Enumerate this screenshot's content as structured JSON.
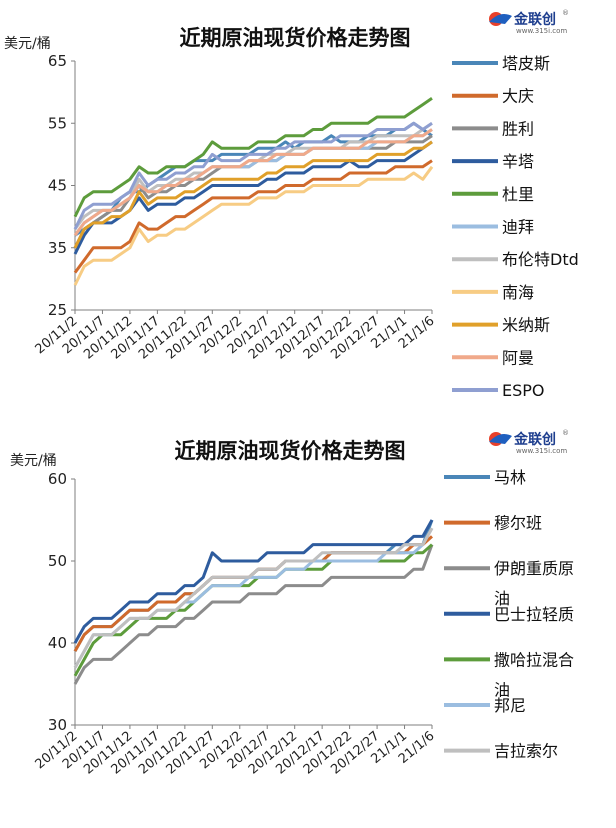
{
  "logo": {
    "brand": "金联创",
    "site": "www.315i.com",
    "mark": "®"
  },
  "chart_data": [
    {
      "type": "line",
      "title": "近期原油现货价格走势图",
      "ylabel": "美元/桶",
      "ylim": [
        25,
        65
      ],
      "yticks": [
        25,
        35,
        45,
        55,
        65
      ],
      "grid": false,
      "legend_position": "right",
      "xtick_labels": [
        "20/11/2",
        "20/11/7",
        "20/11/12",
        "20/11/17",
        "20/11/22",
        "20/11/27",
        "20/12/2",
        "20/12/7",
        "20/12/12",
        "20/12/17",
        "20/12/22",
        "20/12/27",
        "21/1/1",
        "21/1/6"
      ],
      "series": [
        {
          "name": "塔皮斯",
          "color": "#4a86b8",
          "values": [
            37,
            38,
            39,
            40,
            41,
            43,
            44,
            44,
            45,
            46,
            47,
            48,
            48,
            49,
            49,
            49,
            50,
            50,
            50,
            50,
            51,
            51,
            51,
            52,
            51,
            52,
            52,
            52,
            53,
            52,
            52,
            52,
            53,
            53,
            53,
            54,
            54,
            55,
            54,
            53
          ]
        },
        {
          "name": "大庆",
          "color": "#d06a2c",
          "values": [
            31,
            33,
            35,
            35,
            35,
            35,
            36,
            39,
            38,
            38,
            39,
            40,
            40,
            41,
            42,
            43,
            43,
            43,
            43,
            43,
            44,
            44,
            44,
            45,
            45,
            45,
            46,
            46,
            46,
            46,
            47,
            47,
            47,
            47,
            47,
            48,
            48,
            48,
            48,
            49
          ]
        },
        {
          "name": "胜利",
          "color": "#8c8c8c",
          "values": [
            35,
            38,
            39,
            40,
            41,
            41,
            43,
            45,
            43,
            44,
            44,
            45,
            45,
            46,
            46,
            47,
            48,
            48,
            48,
            48,
            49,
            49,
            49,
            50,
            50,
            50,
            51,
            51,
            51,
            51,
            51,
            51,
            51,
            51,
            51,
            52,
            52,
            52,
            52,
            53
          ]
        },
        {
          "name": "辛塔",
          "color": "#2e5c9e",
          "values": [
            34,
            37,
            39,
            39,
            39,
            40,
            41,
            43,
            41,
            42,
            42,
            42,
            43,
            43,
            44,
            45,
            45,
            45,
            45,
            45,
            45,
            46,
            46,
            47,
            47,
            47,
            48,
            48,
            48,
            48,
            49,
            48,
            48,
            49,
            49,
            49,
            49,
            50,
            51,
            52
          ]
        },
        {
          "name": "杜里",
          "color": "#5d9c3c",
          "values": [
            40,
            43,
            44,
            44,
            44,
            45,
            46,
            48,
            47,
            47,
            48,
            48,
            48,
            49,
            50,
            52,
            51,
            51,
            51,
            51,
            52,
            52,
            52,
            53,
            53,
            53,
            54,
            54,
            55,
            55,
            55,
            55,
            55,
            56,
            56,
            56,
            56,
            57,
            58,
            59
          ]
        },
        {
          "name": "迪拜",
          "color": "#9bbde0",
          "values": [
            37,
            39,
            40,
            41,
            41,
            42,
            43,
            45,
            44,
            44,
            45,
            45,
            46,
            46,
            47,
            48,
            48,
            48,
            48,
            48,
            49,
            49,
            49,
            50,
            50,
            50,
            51,
            51,
            51,
            51,
            51,
            51,
            51,
            52,
            52,
            52,
            52,
            53,
            53,
            54
          ]
        },
        {
          "name": "布伦特Dtd",
          "color": "#bfbfbf",
          "values": [
            38,
            40,
            41,
            41,
            41,
            42,
            43,
            46,
            44,
            45,
            45,
            46,
            46,
            47,
            47,
            48,
            48,
            48,
            48,
            49,
            49,
            50,
            50,
            50,
            51,
            51,
            51,
            51,
            51,
            51,
            52,
            52,
            52,
            53,
            53,
            53,
            53,
            53,
            54,
            55
          ]
        },
        {
          "name": "南海",
          "color": "#f7cc84",
          "values": [
            29,
            32,
            33,
            33,
            33,
            34,
            35,
            38,
            36,
            37,
            37,
            38,
            38,
            39,
            40,
            41,
            42,
            42,
            42,
            42,
            43,
            43,
            43,
            44,
            44,
            44,
            45,
            45,
            45,
            45,
            45,
            45,
            46,
            46,
            46,
            46,
            46,
            47,
            46,
            48
          ]
        },
        {
          "name": "米纳斯",
          "color": "#e0a02a",
          "values": [
            35,
            38,
            39,
            39,
            40,
            40,
            41,
            44,
            42,
            43,
            43,
            43,
            44,
            44,
            45,
            46,
            46,
            46,
            46,
            46,
            46,
            47,
            47,
            48,
            48,
            48,
            49,
            49,
            49,
            49,
            49,
            49,
            49,
            50,
            50,
            50,
            50,
            51,
            51,
            52
          ]
        },
        {
          "name": "阿曼",
          "color": "#f0a98a",
          "values": [
            37,
            39,
            40,
            41,
            41,
            42,
            43,
            45,
            44,
            44,
            45,
            45,
            46,
            46,
            47,
            48,
            48,
            48,
            48,
            49,
            49,
            49,
            50,
            50,
            50,
            50,
            51,
            51,
            51,
            51,
            51,
            51,
            52,
            52,
            52,
            52,
            52,
            53,
            53,
            54
          ]
        },
        {
          "name": "ESPO",
          "color": "#8f9fd1",
          "values": [
            38,
            41,
            42,
            42,
            42,
            43,
            44,
            47,
            45,
            46,
            46,
            47,
            47,
            48,
            48,
            50,
            49,
            49,
            49,
            50,
            50,
            50,
            51,
            51,
            52,
            52,
            52,
            52,
            52,
            53,
            53,
            53,
            53,
            54,
            54,
            54,
            54,
            55,
            54,
            55
          ]
        }
      ]
    },
    {
      "type": "line",
      "title": "近期原油现货价格走势图",
      "ylabel": "美元/桶",
      "ylim": [
        30,
        60
      ],
      "yticks": [
        30,
        40,
        50,
        60
      ],
      "grid": false,
      "legend_position": "right",
      "xtick_labels": [
        "20/11/2",
        "20/11/7",
        "20/11/12",
        "20/11/17",
        "20/11/22",
        "20/11/27",
        "20/12/2",
        "20/12/7",
        "20/12/12",
        "20/12/17",
        "20/12/22",
        "20/12/27",
        "21/1/1",
        "21/1/6"
      ],
      "series": [
        {
          "name": "马林",
          "color": "#4a86b8",
          "values": [
            39,
            41,
            42,
            42,
            42,
            43,
            44,
            44,
            44,
            45,
            45,
            45,
            46,
            46,
            47,
            48,
            48,
            48,
            48,
            48,
            49,
            49,
            49,
            50,
            50,
            50,
            50,
            50,
            51,
            51,
            51,
            51,
            51,
            51,
            51,
            52,
            52,
            52,
            52,
            55
          ]
        },
        {
          "name": "穆尔班",
          "color": "#d06a2c",
          "values": [
            39,
            41,
            42,
            42,
            42,
            43,
            44,
            44,
            44,
            45,
            45,
            45,
            46,
            46,
            47,
            48,
            48,
            48,
            48,
            48,
            49,
            49,
            49,
            50,
            50,
            50,
            50,
            50,
            51,
            51,
            51,
            51,
            51,
            51,
            51,
            51,
            51,
            52,
            52,
            53
          ]
        },
        {
          "name": "伊朗重质原油",
          "color": "#8c8c8c",
          "values": [
            35,
            37,
            38,
            38,
            38,
            39,
            40,
            41,
            41,
            42,
            42,
            42,
            43,
            43,
            44,
            45,
            45,
            45,
            45,
            46,
            46,
            46,
            46,
            47,
            47,
            47,
            47,
            47,
            48,
            48,
            48,
            48,
            48,
            48,
            48,
            48,
            48,
            49,
            49,
            52
          ]
        },
        {
          "name": "巴士拉轻质",
          "color": "#2e5c9e",
          "values": [
            40,
            42,
            43,
            43,
            43,
            44,
            45,
            45,
            45,
            46,
            46,
            46,
            47,
            47,
            48,
            51,
            50,
            50,
            50,
            50,
            50,
            51,
            51,
            51,
            51,
            51,
            52,
            52,
            52,
            52,
            52,
            52,
            52,
            52,
            52,
            52,
            52,
            53,
            53,
            55
          ]
        },
        {
          "name": "撒哈拉混合油",
          "color": "#5d9c3c",
          "values": [
            36,
            38,
            40,
            41,
            41,
            41,
            42,
            43,
            43,
            43,
            43,
            44,
            44,
            45,
            46,
            47,
            47,
            47,
            47,
            47,
            48,
            48,
            48,
            49,
            49,
            49,
            49,
            49,
            50,
            50,
            50,
            50,
            50,
            50,
            50,
            50,
            50,
            51,
            51,
            52
          ]
        },
        {
          "name": "邦尼",
          "color": "#9bbde0",
          "values": [
            37,
            39,
            41,
            41,
            41,
            42,
            43,
            43,
            43,
            44,
            44,
            44,
            45,
            45,
            46,
            47,
            47,
            47,
            47,
            48,
            48,
            48,
            48,
            49,
            49,
            49,
            50,
            50,
            50,
            50,
            50,
            50,
            50,
            50,
            51,
            51,
            51,
            51,
            52,
            54
          ]
        },
        {
          "name": "吉拉索尔",
          "color": "#bfbfbf",
          "values": [
            37,
            39,
            41,
            41,
            41,
            42,
            43,
            43,
            43,
            44,
            44,
            44,
            45,
            46,
            47,
            48,
            48,
            48,
            48,
            48,
            49,
            49,
            49,
            50,
            50,
            50,
            50,
            51,
            51,
            51,
            51,
            51,
            51,
            51,
            51,
            51,
            52,
            52,
            52,
            54
          ]
        }
      ]
    }
  ]
}
